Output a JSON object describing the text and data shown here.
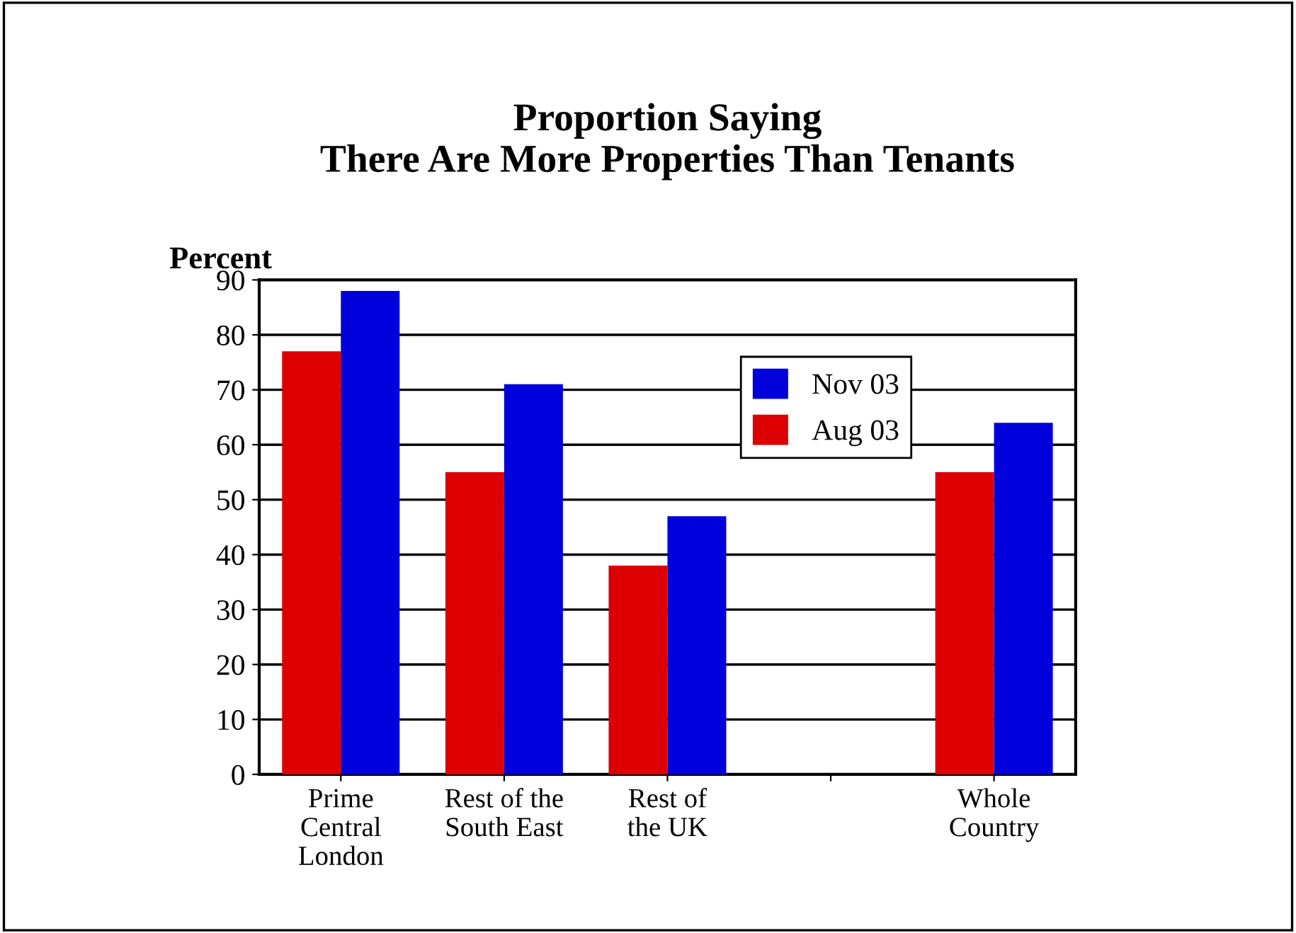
{
  "chart_data": {
    "type": "bar",
    "title": "Proportion Saying\nThere Are More Properties Than Tenants",
    "ylabel": "Percent",
    "categories": [
      "Prime\nCentral\nLondon",
      "Rest of the\nSouth East",
      "Rest of\nthe UK",
      null,
      "Whole\nCountry"
    ],
    "series": [
      {
        "name": "Aug 03",
        "color": "#dd0000",
        "values": [
          77,
          55,
          38,
          null,
          55
        ]
      },
      {
        "name": "Nov 03",
        "color": "#0000dd",
        "values": [
          88,
          71,
          47,
          null,
          64
        ]
      }
    ],
    "ylim": [
      0,
      90
    ],
    "yticks": [
      0,
      10,
      20,
      30,
      40,
      50,
      60,
      70,
      80,
      90
    ],
    "grid": "y",
    "legend": "top right"
  }
}
